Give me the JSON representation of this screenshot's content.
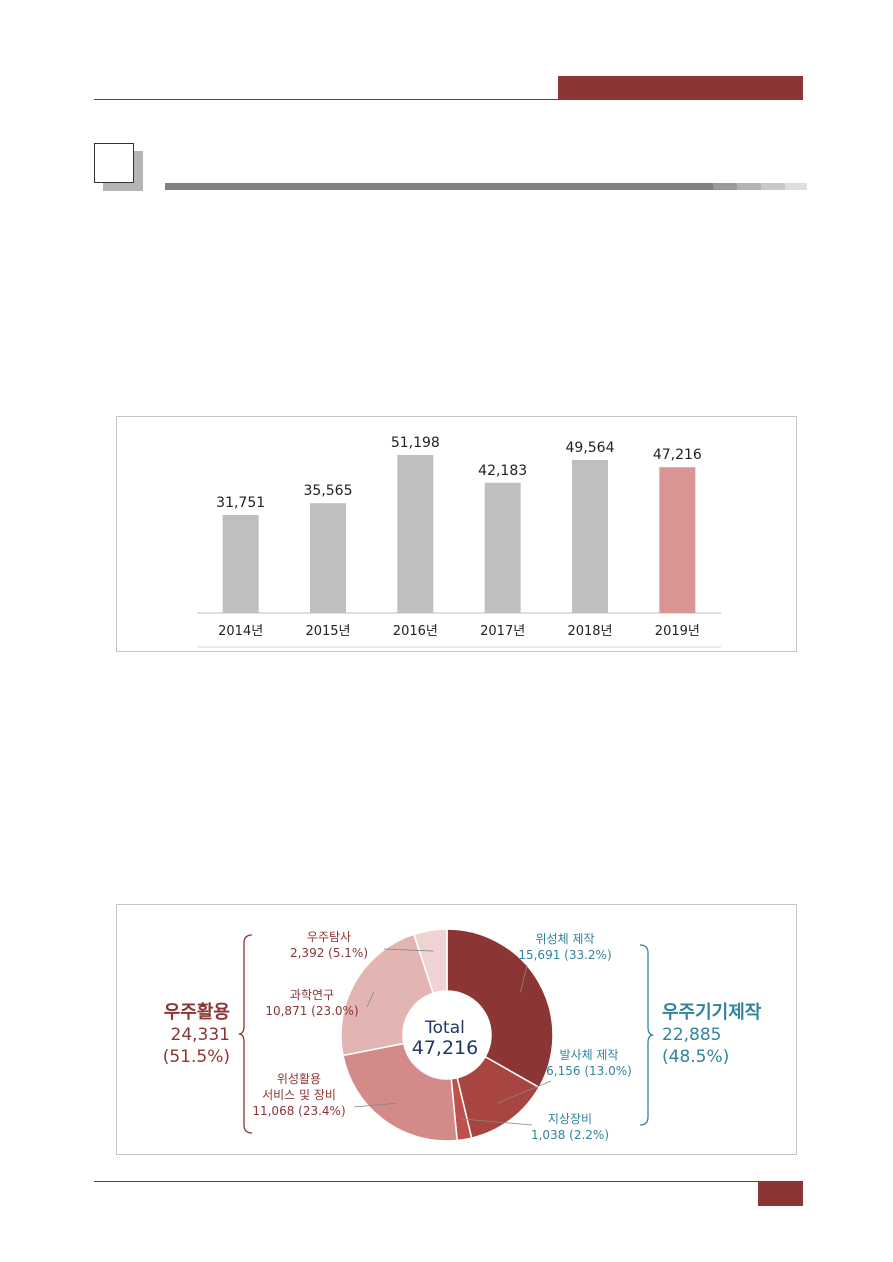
{
  "colors": {
    "accent": "#8b3535",
    "bar_default": "#bfbfbf",
    "bar_highlight": "#d99594",
    "teal": "#31849b",
    "navy": "#1f3864"
  },
  "chart_data": [
    {
      "type": "bar",
      "categories": [
        "2014년",
        "2015년",
        "2016년",
        "2017년",
        "2018년",
        "2019년"
      ],
      "values": [
        31751,
        35565,
        51198,
        42183,
        49564,
        47216
      ],
      "value_labels": [
        "31,751",
        "35,565",
        "51,198",
        "42,183",
        "49,564",
        "47,216"
      ],
      "highlight": "2019년",
      "title": "",
      "xlabel": "",
      "ylabel": "",
      "ylim": [
        0,
        57000
      ],
      "grid": false
    },
    {
      "type": "pie",
      "style": "donut",
      "center_label": {
        "line1": "Total",
        "line2": "47,216"
      },
      "total": 47216,
      "slices": [
        {
          "label": "위성체 제작",
          "value": 15691,
          "value_text": "15,691",
          "pct_text": "(33.2%)",
          "color": "#8b3535",
          "group": "right"
        },
        {
          "label": "발사체 제작",
          "value": 6156,
          "value_text": "6,156",
          "pct_text": "(13.0%)",
          "color": "#a84540",
          "group": "right"
        },
        {
          "label": "지상장비",
          "value": 1038,
          "value_text": "1,038",
          "pct_text": "(2.2%)",
          "color": "#c0504d",
          "group": "right"
        },
        {
          "label": "위성활용 서비스 및 장비",
          "label_lines": [
            "위성활용",
            "서비스 및 장비"
          ],
          "value": 11068,
          "value_text": "11,068",
          "pct_text": "(23.4%)",
          "color": "#d48a88",
          "group": "left"
        },
        {
          "label": "과학연구",
          "value": 10871,
          "value_text": "10,871",
          "pct_text": "(23.0%)",
          "color": "#e2b4b2",
          "group": "left"
        },
        {
          "label": "우주탐사",
          "value": 2392,
          "value_text": "2,392",
          "pct_text": "(5.1%)",
          "color": "#efd3d2",
          "group": "left"
        }
      ],
      "groups": {
        "left": {
          "name": "우주활용",
          "value": "24,331",
          "pct": "(51.5%)"
        },
        "right": {
          "name": "우주기기제작",
          "value": "22,885",
          "pct": "(48.5%)"
        }
      }
    }
  ]
}
